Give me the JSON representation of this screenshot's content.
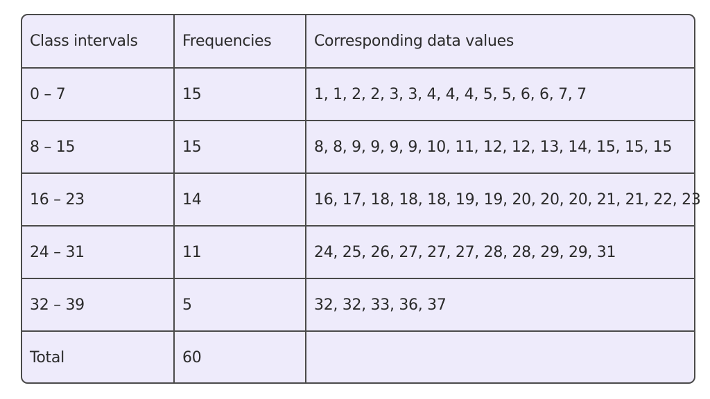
{
  "table": {
    "headers": [
      "Class intervals",
      "Frequencies",
      "Corresponding data values"
    ],
    "rows": [
      [
        "0 – 7",
        "15",
        "1, 1, 2, 2, 3, 3, 4, 4, 4, 5, 5, 6, 6, 7, 7"
      ],
      [
        "8 – 15",
        "15",
        "8, 8, 9, 9, 9, 9, 10, 11, 12, 12, 13, 14, 15, 15, 15"
      ],
      [
        "16 – 23",
        "14",
        "16, 17, 18, 18, 18, 19, 19, 20, 20, 20, 21, 21, 22, 23"
      ],
      [
        "24 – 31",
        "11",
        "24, 25, 26, 27, 27, 27, 28, 28, 29, 29, 31"
      ],
      [
        "32 – 39",
        "5",
        "32, 32, 33, 36, 37"
      ],
      [
        "Total",
        "60",
        ""
      ]
    ]
  },
  "colors": {
    "cell_background": "#eeebfb",
    "border": "#4a4a4a",
    "text": "#2b2b2b"
  }
}
